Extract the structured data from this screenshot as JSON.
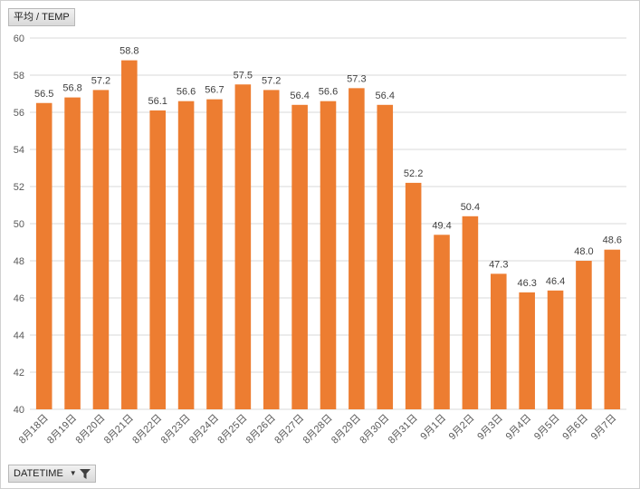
{
  "field_buttons": {
    "measure": "平均 / TEMP",
    "axis": "DATETIME"
  },
  "colors": {
    "bar": "#ED7D31",
    "grid": "#d9d9d9"
  },
  "chart_data": {
    "type": "bar",
    "title": "",
    "xlabel": "",
    "ylabel": "",
    "ylim": [
      40,
      60
    ],
    "yticks": [
      40,
      42,
      44,
      46,
      48,
      50,
      52,
      54,
      56,
      58,
      60
    ],
    "grid": true,
    "categories": [
      "8月18日",
      "8月19日",
      "8月20日",
      "8月21日",
      "8月22日",
      "8月23日",
      "8月24日",
      "8月25日",
      "8月26日",
      "8月27日",
      "8月28日",
      "8月29日",
      "8月30日",
      "8月31日",
      "9月1日",
      "9月2日",
      "9月3日",
      "9月4日",
      "9月5日",
      "9月6日",
      "9月7日"
    ],
    "values": [
      56.5,
      56.8,
      57.2,
      58.8,
      56.1,
      56.6,
      56.7,
      57.5,
      57.2,
      56.4,
      56.6,
      57.3,
      56.4,
      52.2,
      49.4,
      50.4,
      47.3,
      46.3,
      46.4,
      48.0,
      48.6
    ],
    "data_labels": [
      "56.5",
      "56.8",
      "57.2",
      "58.8",
      "56.1",
      "56.6",
      "56.7",
      "57.5",
      "57.2",
      "56.4",
      "56.6",
      "57.3",
      "56.4",
      "52.2",
      "49.4",
      "50.4",
      "47.3",
      "46.3",
      "46.4",
      "48.0",
      "48.6"
    ]
  }
}
